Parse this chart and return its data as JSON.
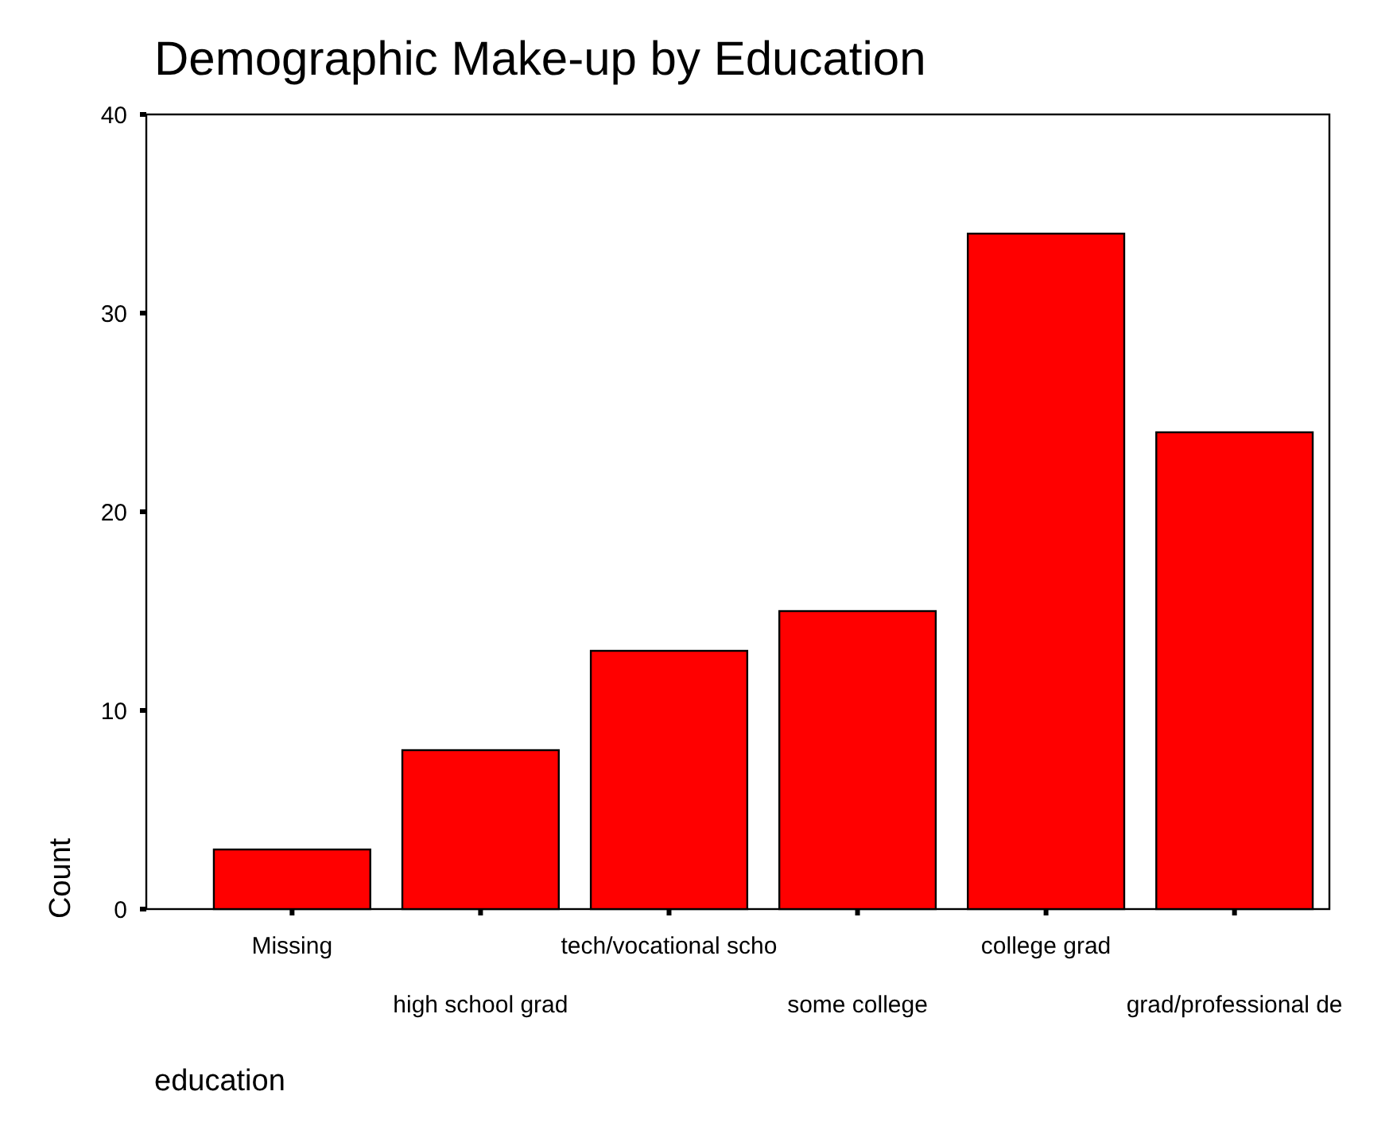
{
  "chart_data": {
    "type": "bar",
    "title": "Demographic Make-up by Education",
    "xlabel": "education",
    "ylabel": "Count",
    "categories": [
      "Missing",
      "high school grad",
      "tech/vocational scho",
      "some college",
      "college grad",
      "grad/professional de"
    ],
    "values": [
      3,
      8,
      13,
      15,
      34,
      24
    ],
    "color": "#ff0000",
    "ylim": [
      0,
      40
    ],
    "yticks": [
      0,
      10,
      20,
      30,
      40
    ],
    "grid": false
  }
}
